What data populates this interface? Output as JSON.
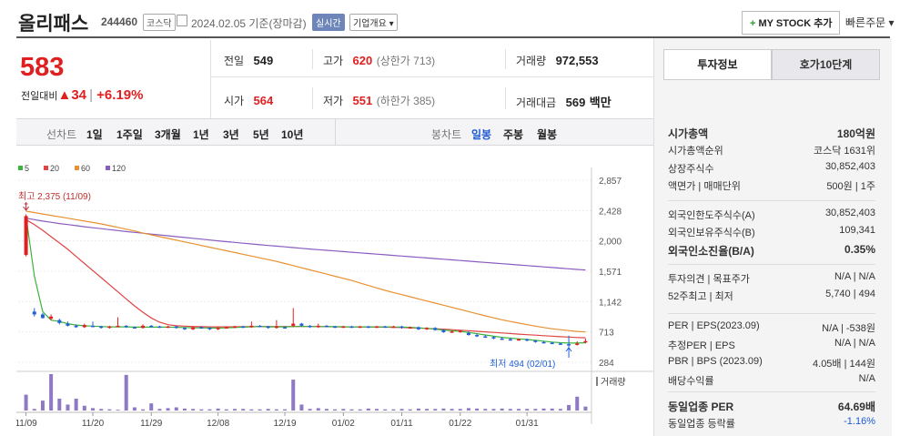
{
  "header": {
    "title": "올리패스",
    "code": "244460",
    "market": "코스닥",
    "date": "2024.02.05 기준(장마감)",
    "live": "실시간",
    "company_info": "기업개요",
    "mystock_label": "MY STOCK 추가",
    "quick_order": "빠른주문"
  },
  "price": {
    "current": "583",
    "change_label": "전일대비",
    "change_value": "34",
    "change_percent": "+6.19%"
  },
  "summary": [
    {
      "label": "전일",
      "value": "549",
      "sub": "",
      "color": "black"
    },
    {
      "label": "고가",
      "value": "620",
      "sub": "(상한가 713)",
      "color": "red"
    },
    {
      "label": "거래량",
      "value": "972,553",
      "sub": "",
      "color": "black"
    },
    {
      "label": "시가",
      "value": "564",
      "sub": "",
      "color": "red"
    },
    {
      "label": "저가",
      "value": "551",
      "sub": "(하한가 385)",
      "color": "red"
    },
    {
      "label": "거래대금",
      "value": "569",
      "sub": "백만",
      "color": "black"
    }
  ],
  "periods": {
    "line_label": "선차트",
    "line_items": [
      "1일",
      "1주일",
      "3개월",
      "1년",
      "3년",
      "5년",
      "10년"
    ],
    "candle_label": "봉차트",
    "candle_items": [
      "일봉",
      "주봉",
      "월봉"
    ],
    "candle_active": "일봉"
  },
  "legend": [
    {
      "name": "5",
      "color": "#3cb43c"
    },
    {
      "name": "20",
      "color": "#e04444"
    },
    {
      "name": "60",
      "color": "#e89030"
    },
    {
      "name": "120",
      "color": "#8a5cc0"
    }
  ],
  "colors": {
    "up": "#e02020",
    "down": "#2060d8",
    "volume": "#8f79c4"
  },
  "chart_data": {
    "type": "line",
    "title": "",
    "y_ticks": [
      "2,857",
      "2,428",
      "2,000",
      "1,571",
      "1,142",
      "713",
      "284"
    ],
    "ylim": [
      284,
      2857
    ],
    "x_ticks": [
      "11/09",
      "11/20",
      "11/29",
      "12/08",
      "12/19",
      "01/02",
      "01/11",
      "01/22",
      "01/31"
    ],
    "high_label": "최고 2,375 (11/09)",
    "low_label": "최저 494 (02/01)",
    "volume_label": "거래량",
    "ohlc": [
      {
        "o": 1800,
        "h": 2375,
        "l": 1780,
        "c": 2350
      },
      {
        "o": 1000,
        "h": 1050,
        "l": 930,
        "c": 960
      },
      {
        "o": 960,
        "h": 980,
        "l": 900,
        "c": 910
      },
      {
        "o": 900,
        "h": 960,
        "l": 880,
        "c": 930
      },
      {
        "o": 880,
        "h": 900,
        "l": 820,
        "c": 840
      },
      {
        "o": 830,
        "h": 860,
        "l": 790,
        "c": 800
      },
      {
        "o": 800,
        "h": 820,
        "l": 770,
        "c": 780
      },
      {
        "o": 780,
        "h": 830,
        "l": 770,
        "c": 810
      },
      {
        "o": 800,
        "h": 860,
        "l": 780,
        "c": 790
      },
      {
        "o": 790,
        "h": 800,
        "l": 760,
        "c": 770
      },
      {
        "o": 770,
        "h": 800,
        "l": 760,
        "c": 790
      },
      {
        "o": 790,
        "h": 920,
        "l": 780,
        "c": 800
      },
      {
        "o": 800,
        "h": 810,
        "l": 770,
        "c": 780
      },
      {
        "o": 780,
        "h": 790,
        "l": 760,
        "c": 770
      },
      {
        "o": 770,
        "h": 820,
        "l": 760,
        "c": 800
      },
      {
        "o": 800,
        "h": 810,
        "l": 780,
        "c": 790
      },
      {
        "o": 790,
        "h": 800,
        "l": 770,
        "c": 780
      },
      {
        "o": 780,
        "h": 800,
        "l": 770,
        "c": 790
      },
      {
        "o": 790,
        "h": 800,
        "l": 760,
        "c": 770
      },
      {
        "o": 770,
        "h": 780,
        "l": 740,
        "c": 750
      },
      {
        "o": 750,
        "h": 790,
        "l": 740,
        "c": 780
      },
      {
        "o": 780,
        "h": 790,
        "l": 760,
        "c": 770
      },
      {
        "o": 770,
        "h": 780,
        "l": 740,
        "c": 750
      },
      {
        "o": 750,
        "h": 780,
        "l": 740,
        "c": 770
      },
      {
        "o": 770,
        "h": 790,
        "l": 760,
        "c": 780
      },
      {
        "o": 780,
        "h": 800,
        "l": 770,
        "c": 790
      },
      {
        "o": 790,
        "h": 800,
        "l": 770,
        "c": 780
      },
      {
        "o": 780,
        "h": 860,
        "l": 770,
        "c": 800
      },
      {
        "o": 800,
        "h": 810,
        "l": 780,
        "c": 790
      },
      {
        "o": 790,
        "h": 800,
        "l": 760,
        "c": 770
      },
      {
        "o": 770,
        "h": 880,
        "l": 760,
        "c": 790
      },
      {
        "o": 780,
        "h": 790,
        "l": 760,
        "c": 770
      },
      {
        "o": 800,
        "h": 1050,
        "l": 780,
        "c": 830
      },
      {
        "o": 830,
        "h": 840,
        "l": 790,
        "c": 800
      },
      {
        "o": 800,
        "h": 810,
        "l": 770,
        "c": 780
      },
      {
        "o": 780,
        "h": 830,
        "l": 770,
        "c": 800
      },
      {
        "o": 800,
        "h": 810,
        "l": 780,
        "c": 790
      },
      {
        "o": 790,
        "h": 800,
        "l": 770,
        "c": 780
      },
      {
        "o": 780,
        "h": 800,
        "l": 770,
        "c": 790
      },
      {
        "o": 790,
        "h": 800,
        "l": 770,
        "c": 780
      },
      {
        "o": 780,
        "h": 800,
        "l": 770,
        "c": 790
      },
      {
        "o": 790,
        "h": 800,
        "l": 770,
        "c": 780
      },
      {
        "o": 780,
        "h": 800,
        "l": 770,
        "c": 790
      },
      {
        "o": 790,
        "h": 800,
        "l": 780,
        "c": 785
      },
      {
        "o": 785,
        "h": 800,
        "l": 770,
        "c": 790
      },
      {
        "o": 790,
        "h": 800,
        "l": 760,
        "c": 770
      },
      {
        "o": 770,
        "h": 790,
        "l": 760,
        "c": 780
      },
      {
        "o": 780,
        "h": 790,
        "l": 740,
        "c": 750
      },
      {
        "o": 750,
        "h": 780,
        "l": 740,
        "c": 770
      },
      {
        "o": 770,
        "h": 780,
        "l": 730,
        "c": 740
      },
      {
        "o": 740,
        "h": 750,
        "l": 700,
        "c": 710
      },
      {
        "o": 710,
        "h": 730,
        "l": 700,
        "c": 720
      },
      {
        "o": 720,
        "h": 740,
        "l": 700,
        "c": 730
      },
      {
        "o": 700,
        "h": 720,
        "l": 660,
        "c": 670
      },
      {
        "o": 670,
        "h": 690,
        "l": 640,
        "c": 650
      },
      {
        "o": 650,
        "h": 670,
        "l": 630,
        "c": 640
      },
      {
        "o": 640,
        "h": 650,
        "l": 610,
        "c": 620
      },
      {
        "o": 620,
        "h": 640,
        "l": 600,
        "c": 610
      },
      {
        "o": 610,
        "h": 630,
        "l": 590,
        "c": 600
      },
      {
        "o": 600,
        "h": 620,
        "l": 590,
        "c": 610
      },
      {
        "o": 610,
        "h": 620,
        "l": 580,
        "c": 590
      },
      {
        "o": 590,
        "h": 600,
        "l": 560,
        "c": 570
      },
      {
        "o": 570,
        "h": 580,
        "l": 550,
        "c": 560
      },
      {
        "o": 560,
        "h": 570,
        "l": 540,
        "c": 550
      },
      {
        "o": 550,
        "h": 560,
        "l": 530,
        "c": 540
      },
      {
        "o": 540,
        "h": 660,
        "l": 494,
        "c": 530
      },
      {
        "o": 530,
        "h": 580,
        "l": 520,
        "c": 549
      },
      {
        "o": 564,
        "h": 620,
        "l": 551,
        "c": 583
      }
    ],
    "volume": [
      40,
      4,
      25,
      92,
      30,
      15,
      30,
      12,
      6,
      4,
      3,
      2,
      90,
      8,
      3,
      18,
      4,
      6,
      8,
      5,
      4,
      3,
      3,
      5,
      3,
      4,
      4,
      3,
      3,
      4,
      3,
      3,
      78,
      15,
      4,
      6,
      4,
      3,
      4,
      3,
      3,
      5,
      4,
      3,
      3,
      4,
      3,
      5,
      4,
      4,
      5,
      4,
      4,
      6,
      5,
      4,
      4,
      5,
      4,
      4,
      4,
      4,
      5,
      5,
      4,
      14,
      35,
      10
    ],
    "ma5": [
      2350,
      1500,
      1000,
      880,
      860,
      830,
      810,
      800,
      795,
      790,
      785,
      785,
      785,
      780,
      780,
      780,
      780,
      780,
      778,
      775,
      772,
      770,
      768,
      768,
      770,
      775,
      780,
      785,
      790,
      785,
      785,
      785,
      788,
      790,
      790,
      788,
      788,
      787,
      786,
      785,
      784,
      784,
      784,
      784,
      783,
      782,
      778,
      770,
      762,
      752,
      740,
      730,
      720,
      706,
      688,
      670,
      652,
      636,
      625,
      615,
      605,
      594,
      582,
      570,
      560,
      556,
      556,
      560
    ],
    "ma20": [
      2300,
      2230,
      2150,
      2060,
      1970,
      1880,
      1780,
      1680,
      1580,
      1480,
      1380,
      1280,
      1180,
      1080,
      990,
      910,
      850,
      815,
      800,
      795,
      790,
      787,
      785,
      784,
      785,
      786,
      787,
      788,
      789,
      790,
      790,
      790,
      790,
      790,
      790,
      788,
      787,
      786,
      785,
      784,
      783,
      782,
      781,
      780,
      778,
      776,
      772,
      768,
      763,
      758,
      752,
      745,
      737,
      730,
      722,
      714,
      706,
      698,
      690,
      682,
      674,
      667,
      660,
      653,
      646,
      640,
      634,
      630
    ],
    "ma60": [
      2420,
      2400,
      2380,
      2360,
      2340,
      2320,
      2300,
      2280,
      2260,
      2240,
      2215,
      2190,
      2165,
      2140,
      2110,
      2085,
      2060,
      2035,
      2010,
      1985,
      1960,
      1935,
      1910,
      1885,
      1860,
      1835,
      1810,
      1785,
      1760,
      1735,
      1710,
      1680,
      1650,
      1620,
      1590,
      1560,
      1530,
      1500,
      1470,
      1440,
      1405,
      1370,
      1335,
      1300,
      1270,
      1240,
      1210,
      1180,
      1150,
      1120,
      1090,
      1060,
      1030,
      1000,
      970,
      940,
      912,
      885,
      860,
      838,
      815,
      795,
      775,
      758,
      745,
      732,
      720,
      713
    ],
    "ma120": [
      2320,
      2300,
      2280,
      2262,
      2245,
      2230,
      2215,
      2200,
      2186,
      2172,
      2158,
      2145,
      2132,
      2120,
      2108,
      2096,
      2084,
      2072,
      2060,
      2048,
      2036,
      2024,
      2012,
      2000,
      1989,
      1978,
      1967,
      1956,
      1945,
      1935,
      1925,
      1915,
      1905,
      1895,
      1885,
      1875,
      1866,
      1857,
      1848,
      1839,
      1830,
      1821,
      1812,
      1803,
      1794,
      1785,
      1776,
      1767,
      1758,
      1749,
      1740,
      1731,
      1722,
      1713,
      1704,
      1695,
      1686,
      1677,
      1668,
      1659,
      1650,
      1641,
      1632,
      1623,
      1614,
      1605,
      1596,
      1588
    ]
  },
  "right_panel": {
    "tabs": [
      "투자정보",
      "호가10단계"
    ],
    "groups": [
      [
        {
          "label": "시가총액",
          "value": "180억원",
          "bold": true
        },
        {
          "label": "시가총액순위",
          "value": "코스닥 1631위",
          "bold": false
        },
        {
          "label": "상장주식수",
          "value": "30,852,403",
          "bold": false
        },
        {
          "label": "액면가 | 매매단위",
          "value": "500원 | 1주",
          "bold": false
        }
      ],
      [
        {
          "label": "외국인한도주식수(A)",
          "value": "30,852,403",
          "bold": false
        },
        {
          "label": "외국인보유주식수(B)",
          "value": "109,341",
          "bold": false
        },
        {
          "label": "외국인소진율(B/A)",
          "value": "0.35%",
          "bold": true
        }
      ],
      [
        {
          "label": "투자의견 | 목표주가",
          "value": "N/A | N/A",
          "bold": false
        },
        {
          "label": "52주최고 | 최저",
          "value": "5,740 | 494",
          "bold": false
        }
      ],
      [
        {
          "label": "PER | EPS(2023.09)",
          "value": "N/A | -538원",
          "bold": false
        },
        {
          "label": "추정PER | EPS",
          "value": "N/A | N/A",
          "bold": false
        },
        {
          "label": "PBR | BPS (2023.09)",
          "value": "4.05배 | 144원",
          "bold": false
        },
        {
          "label": "배당수익률",
          "value": "N/A",
          "bold": false
        }
      ],
      [
        {
          "label": "동일업종 PER",
          "value": "64.69배",
          "bold": true
        },
        {
          "label": "동일업종 등락률",
          "value": "-1.16%",
          "bold": false
        }
      ]
    ]
  }
}
